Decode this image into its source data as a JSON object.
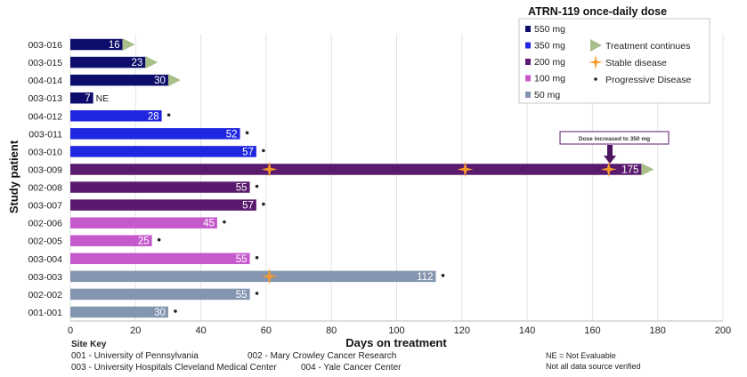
{
  "chart_data": {
    "type": "bar",
    "orientation": "horizontal",
    "title": "",
    "xlabel": "Days on treatment",
    "ylabel": "Study patient",
    "xlim": [
      0,
      200
    ],
    "xticks": [
      0,
      20,
      40,
      60,
      80,
      100,
      120,
      140,
      160,
      180,
      200
    ],
    "grid": "vertical",
    "legend_title": "ATRN-119 once-daily dose",
    "legend_position": "top-right",
    "dose_groups": [
      {
        "name": "550 mg",
        "color": "#0d0d6b"
      },
      {
        "name": "350 mg",
        "color": "#1f27e0"
      },
      {
        "name": "200 mg",
        "color": "#5a1a6e"
      },
      {
        "name": "100 mg",
        "color": "#c45acb"
      },
      {
        "name": "50 mg",
        "color": "#8495b0"
      }
    ],
    "marker_legend": [
      {
        "name": "Treatment continues",
        "symbol": "triangle",
        "color": "#a8bf8a"
      },
      {
        "name": "Stable disease",
        "symbol": "star",
        "color": "#f59a2a"
      },
      {
        "name": "Progressive Disease",
        "symbol": "dot",
        "color": "#222222"
      }
    ],
    "patients": [
      {
        "id": "003-016",
        "dose": "550 mg",
        "days": 16,
        "label": "16",
        "continues": true,
        "pd": false,
        "sd": []
      },
      {
        "id": "003-015",
        "dose": "550 mg",
        "days": 23,
        "label": "23",
        "continues": true,
        "pd": false,
        "sd": []
      },
      {
        "id": "004-014",
        "dose": "550 mg",
        "days": 30,
        "label": "30",
        "continues": true,
        "pd": false,
        "sd": []
      },
      {
        "id": "003-013",
        "dose": "550 mg",
        "days": 7,
        "label": "7",
        "note": "NE",
        "continues": false,
        "pd": false,
        "sd": []
      },
      {
        "id": "004-012",
        "dose": "350 mg",
        "days": 28,
        "label": "28",
        "continues": false,
        "pd": true,
        "sd": []
      },
      {
        "id": "003-011",
        "dose": "350 mg",
        "days": 52,
        "label": "52",
        "continues": false,
        "pd": true,
        "sd": []
      },
      {
        "id": "003-010",
        "dose": "350 mg",
        "days": 57,
        "label": "57",
        "continues": false,
        "pd": true,
        "sd": []
      },
      {
        "id": "003-009",
        "dose": "200 mg",
        "days": 175,
        "label": "175",
        "continues": true,
        "pd": false,
        "sd": [
          61,
          121,
          165
        ]
      },
      {
        "id": "002-008",
        "dose": "200 mg",
        "days": 55,
        "label": "55",
        "continues": false,
        "pd": true,
        "sd": []
      },
      {
        "id": "003-007",
        "dose": "200 mg",
        "days": 57,
        "label": "57",
        "continues": false,
        "pd": true,
        "sd": []
      },
      {
        "id": "002-006",
        "dose": "100 mg",
        "days": 45,
        "label": "45",
        "continues": false,
        "pd": true,
        "sd": []
      },
      {
        "id": "002-005",
        "dose": "100 mg",
        "days": 25,
        "label": "25",
        "continues": false,
        "pd": true,
        "sd": []
      },
      {
        "id": "003-004",
        "dose": "100 mg",
        "days": 55,
        "label": "55",
        "continues": false,
        "pd": true,
        "sd": []
      },
      {
        "id": "003-003",
        "dose": "50 mg",
        "days": 112,
        "label": "112",
        "continues": false,
        "pd": true,
        "sd": [
          61
        ]
      },
      {
        "id": "002-002",
        "dose": "50 mg",
        "days": 55,
        "label": "55",
        "continues": false,
        "pd": true,
        "sd": []
      },
      {
        "id": "001-001",
        "dose": "50 mg",
        "days": 30,
        "label": "30",
        "continues": false,
        "pd": true,
        "sd": []
      }
    ],
    "annotation": {
      "text": "Dose increased to 350 mg",
      "patient": "003-009",
      "x": 165
    }
  },
  "site_key": {
    "title": "Site Key",
    "line1": [
      {
        "text": "001 -  University of Pennsylvania"
      },
      {
        "text": "002 -  Mary Crowley Cancer Research"
      }
    ],
    "line2": [
      {
        "text": "003 - University Hospitals Cleveland Medical Center"
      },
      {
        "text": "004 - Yale Cancer Center"
      }
    ]
  },
  "footnotes": {
    "ne": "NE = Not Evaluable",
    "verified": "Not all data source verified"
  }
}
